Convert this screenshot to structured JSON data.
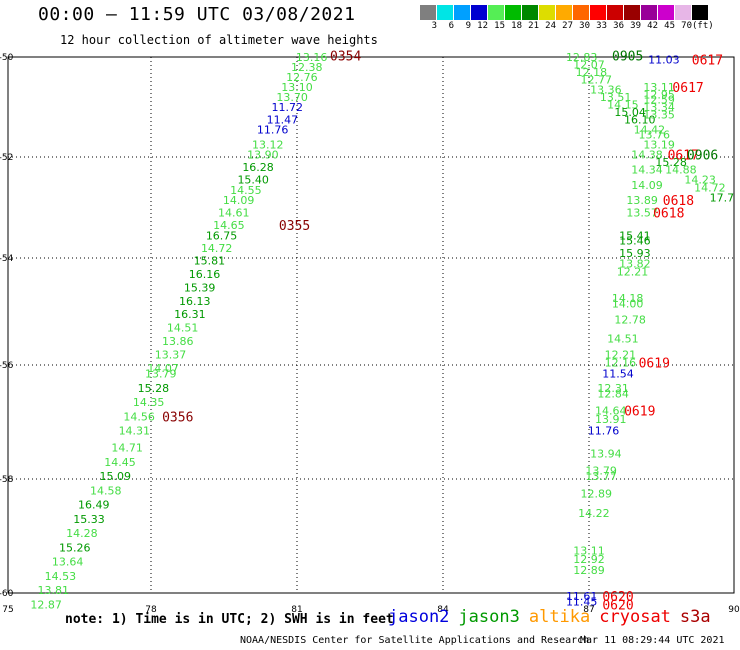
{
  "header": {
    "title": "00:00 – 11:59 UTC 03/08/2021",
    "subtitle": "12 hour collection of altimeter wave heights"
  },
  "colorbar": {
    "colors": [
      "#7f7f7f",
      "#00e5e5",
      "#00a0ff",
      "#0000d0",
      "#55ee55",
      "#00bb00",
      "#008800",
      "#dddd00",
      "#ffaa00",
      "#ff6600",
      "#ff0000",
      "#cc0000",
      "#990000",
      "#990099",
      "#cc00cc",
      "#e7b6e7",
      "#000000"
    ],
    "labels": [
      "3",
      "6",
      "9",
      "12",
      "15",
      "18",
      "21",
      "24",
      "27",
      "30",
      "33",
      "36",
      "39",
      "42",
      "45",
      "70",
      "(ft)"
    ]
  },
  "map": {
    "x_ticks": [
      "75",
      "78",
      "81",
      "84",
      "87",
      "90"
    ],
    "y_ticks": [
      "-50",
      "-52",
      "-54",
      "-56",
      "-58",
      "-60"
    ]
  },
  "heights": [
    {
      "t": "13.16",
      "c": "#44dd44",
      "lon": 81.3,
      "lat": -50.0
    },
    {
      "t": "12.38",
      "c": "#44dd44",
      "lon": 81.2,
      "lat": -50.2
    },
    {
      "t": "12.76",
      "c": "#44dd44",
      "lon": 81.1,
      "lat": -50.4
    },
    {
      "t": "13.10",
      "c": "#44dd44",
      "lon": 81.0,
      "lat": -50.6
    },
    {
      "t": "13.70",
      "c": "#44dd44",
      "lon": 80.9,
      "lat": -50.8
    },
    {
      "t": "11.72",
      "c": "#0000cc",
      "lon": 80.8,
      "lat": -51.0
    },
    {
      "t": "11.47",
      "c": "#0000cc",
      "lon": 80.7,
      "lat": -51.25
    },
    {
      "t": "11.76",
      "c": "#0000cc",
      "lon": 80.5,
      "lat": -51.45
    },
    {
      "t": "13.12",
      "c": "#44dd44",
      "lon": 80.4,
      "lat": -51.75
    },
    {
      "t": "13.90",
      "c": "#44dd44",
      "lon": 80.3,
      "lat": -51.95
    },
    {
      "t": "16.28",
      "c": "#009900",
      "lon": 80.2,
      "lat": -52.2
    },
    {
      "t": "15.40",
      "c": "#009900",
      "lon": 80.1,
      "lat": -52.45
    },
    {
      "t": "14.55",
      "c": "#44dd44",
      "lon": 79.95,
      "lat": -52.65
    },
    {
      "t": "14.09",
      "c": "#44dd44",
      "lon": 79.8,
      "lat": -52.85
    },
    {
      "t": "14.61",
      "c": "#44dd44",
      "lon": 79.7,
      "lat": -53.1
    },
    {
      "t": "14.65",
      "c": "#44dd44",
      "lon": 79.6,
      "lat": -53.35
    },
    {
      "t": "16.75",
      "c": "#009900",
      "lon": 79.45,
      "lat": -53.55
    },
    {
      "t": "14.72",
      "c": "#44dd44",
      "lon": 79.35,
      "lat": -53.8
    },
    {
      "t": "15.81",
      "c": "#009900",
      "lon": 79.2,
      "lat": -54.05
    },
    {
      "t": "16.16",
      "c": "#009900",
      "lon": 79.1,
      "lat": -54.3
    },
    {
      "t": "15.39",
      "c": "#009900",
      "lon": 79.0,
      "lat": -54.55
    },
    {
      "t": "16.13",
      "c": "#009900",
      "lon": 78.9,
      "lat": -54.8
    },
    {
      "t": "16.31",
      "c": "#009900",
      "lon": 78.8,
      "lat": -55.05
    },
    {
      "t": "14.51",
      "c": "#44dd44",
      "lon": 78.65,
      "lat": -55.3
    },
    {
      "t": "13.86",
      "c": "#44dd44",
      "lon": 78.55,
      "lat": -55.55
    },
    {
      "t": "13.37",
      "c": "#44dd44",
      "lon": 78.4,
      "lat": -55.8
    },
    {
      "t": "14.07",
      "c": "#44dd44",
      "lon": 78.25,
      "lat": -56.05
    },
    {
      "t": "13.79",
      "c": "#44dd44",
      "lon": 78.2,
      "lat": -56.15
    },
    {
      "t": "15.28",
      "c": "#009900",
      "lon": 78.05,
      "lat": -56.4
    },
    {
      "t": "14.35",
      "c": "#44dd44",
      "lon": 77.95,
      "lat": -56.65
    },
    {
      "t": "14.56",
      "c": "#44dd44",
      "lon": 77.75,
      "lat": -56.9
    },
    {
      "t": "14.31",
      "c": "#44dd44",
      "lon": 77.65,
      "lat": -57.15
    },
    {
      "t": "14.71",
      "c": "#44dd44",
      "lon": 77.5,
      "lat": -57.45
    },
    {
      "t": "14.45",
      "c": "#44dd44",
      "lon": 77.35,
      "lat": -57.7
    },
    {
      "t": "15.09",
      "c": "#009900",
      "lon": 77.25,
      "lat": -57.95
    },
    {
      "t": "14.58",
      "c": "#44dd44",
      "lon": 77.05,
      "lat": -58.2
    },
    {
      "t": "16.49",
      "c": "#009900",
      "lon": 76.8,
      "lat": -58.45
    },
    {
      "t": "15.33",
      "c": "#009900",
      "lon": 76.7,
      "lat": -58.7
    },
    {
      "t": "14.28",
      "c": "#44dd44",
      "lon": 76.55,
      "lat": -58.95
    },
    {
      "t": "15.26",
      "c": "#009900",
      "lon": 76.4,
      "lat": -59.2
    },
    {
      "t": "13.64",
      "c": "#44dd44",
      "lon": 76.25,
      "lat": -59.45
    },
    {
      "t": "14.53",
      "c": "#44dd44",
      "lon": 76.1,
      "lat": -59.7
    },
    {
      "t": "13.81",
      "c": "#44dd44",
      "lon": 75.95,
      "lat": -59.95
    },
    {
      "t": "12.87",
      "c": "#44dd44",
      "lon": 75.8,
      "lat": -60.2
    },
    {
      "t": "12.83",
      "c": "#44dd44",
      "lon": 86.85,
      "lat": -50.0
    },
    {
      "t": "12.07",
      "c": "#44dd44",
      "lon": 87.0,
      "lat": -50.15
    },
    {
      "t": "12.18",
      "c": "#44dd44",
      "lon": 87.05,
      "lat": -50.3
    },
    {
      "t": "12.77",
      "c": "#44dd44",
      "lon": 87.15,
      "lat": -50.45
    },
    {
      "t": "13.36",
      "c": "#44dd44",
      "lon": 87.35,
      "lat": -50.65
    },
    {
      "t": "13.51",
      "c": "#44dd44",
      "lon": 87.55,
      "lat": -50.8
    },
    {
      "t": "14.15",
      "c": "#44dd44",
      "lon": 87.7,
      "lat": -50.95
    },
    {
      "t": "15.04",
      "c": "#009900",
      "lon": 87.85,
      "lat": -51.1
    },
    {
      "t": "16.10",
      "c": "#009900",
      "lon": 88.05,
      "lat": -51.25
    },
    {
      "t": "13.11",
      "c": "#44dd44",
      "lon": 88.45,
      "lat": -50.6
    },
    {
      "t": "12.95",
      "c": "#44dd44",
      "lon": 88.45,
      "lat": -50.75
    },
    {
      "t": "12.59",
      "c": "#44dd44",
      "lon": 88.45,
      "lat": -50.85
    },
    {
      "t": "13.34",
      "c": "#44dd44",
      "lon": 88.45,
      "lat": -51.0
    },
    {
      "t": "13.35",
      "c": "#44dd44",
      "lon": 88.45,
      "lat": -51.15
    },
    {
      "t": "14.42",
      "c": "#44dd44",
      "lon": 88.25,
      "lat": -51.45
    },
    {
      "t": "13.76",
      "c": "#44dd44",
      "lon": 88.35,
      "lat": -51.55
    },
    {
      "t": "13.19",
      "c": "#44dd44",
      "lon": 88.45,
      "lat": -51.75
    },
    {
      "t": "14.38",
      "c": "#44dd44",
      "lon": 88.2,
      "lat": -51.95
    },
    {
      "t": "15.28",
      "c": "#009900",
      "lon": 88.7,
      "lat": -52.1
    },
    {
      "t": "14.34",
      "c": "#44dd44",
      "lon": 88.2,
      "lat": -52.25
    },
    {
      "t": "14.88",
      "c": "#44dd44",
      "lon": 88.9,
      "lat": -52.25
    },
    {
      "t": "14.23",
      "c": "#44dd44",
      "lon": 89.3,
      "lat": -52.45
    },
    {
      "t": "14.09",
      "c": "#44dd44",
      "lon": 88.2,
      "lat": -52.55
    },
    {
      "t": "14.72",
      "c": "#44dd44",
      "lon": 89.5,
      "lat": -52.6
    },
    {
      "t": "17.7",
      "c": "#009900",
      "lon": 89.75,
      "lat": -52.8
    },
    {
      "t": "13.89",
      "c": "#44dd44",
      "lon": 88.1,
      "lat": -52.85
    },
    {
      "t": "13.57",
      "c": "#44dd44",
      "lon": 88.1,
      "lat": -53.1
    },
    {
      "t": "15.41",
      "c": "#009900",
      "lon": 87.95,
      "lat": -53.55
    },
    {
      "t": "15.46",
      "c": "#009900",
      "lon": 87.95,
      "lat": -53.65
    },
    {
      "t": "15.93",
      "c": "#009900",
      "lon": 87.95,
      "lat": -53.9
    },
    {
      "t": "13.82",
      "c": "#44dd44",
      "lon": 87.95,
      "lat": -54.1
    },
    {
      "t": "12.21",
      "c": "#44dd44",
      "lon": 87.9,
      "lat": -54.25
    },
    {
      "t": "14.18",
      "c": "#44dd44",
      "lon": 87.8,
      "lat": -54.75
    },
    {
      "t": "14.00",
      "c": "#44dd44",
      "lon": 87.8,
      "lat": -54.85
    },
    {
      "t": "12.78",
      "c": "#44dd44",
      "lon": 87.85,
      "lat": -55.15
    },
    {
      "t": "14.51",
      "c": "#44dd44",
      "lon": 87.7,
      "lat": -55.5
    },
    {
      "t": "12.21",
      "c": "#44dd44",
      "lon": 87.65,
      "lat": -55.8
    },
    {
      "t": "12.16",
      "c": "#44dd44",
      "lon": 87.65,
      "lat": -55.95
    },
    {
      "t": "11.54",
      "c": "#0000cc",
      "lon": 87.6,
      "lat": -56.15
    },
    {
      "t": "12.31",
      "c": "#44dd44",
      "lon": 87.5,
      "lat": -56.4
    },
    {
      "t": "12.84",
      "c": "#44dd44",
      "lon": 87.5,
      "lat": -56.5
    },
    {
      "t": "14.64",
      "c": "#44dd44",
      "lon": 87.45,
      "lat": -56.8
    },
    {
      "t": "13.91",
      "c": "#44dd44",
      "lon": 87.45,
      "lat": -56.95
    },
    {
      "t": "11.76",
      "c": "#0000cc",
      "lon": 87.3,
      "lat": -57.15
    },
    {
      "t": "13.94",
      "c": "#44dd44",
      "lon": 87.35,
      "lat": -57.55
    },
    {
      "t": "13.79",
      "c": "#44dd44",
      "lon": 87.25,
      "lat": -57.85
    },
    {
      "t": "13.77",
      "c": "#44dd44",
      "lon": 87.25,
      "lat": -57.95
    },
    {
      "t": "12.89",
      "c": "#44dd44",
      "lon": 87.15,
      "lat": -58.25
    },
    {
      "t": "14.22",
      "c": "#44dd44",
      "lon": 87.1,
      "lat": -58.6
    },
    {
      "t": "13.11",
      "c": "#44dd44",
      "lon": 87.0,
      "lat": -59.25
    },
    {
      "t": "12.92",
      "c": "#44dd44",
      "lon": 87.0,
      "lat": -59.4
    },
    {
      "t": "12.89",
      "c": "#44dd44",
      "lon": 87.0,
      "lat": -59.6
    },
    {
      "t": "11.61",
      "c": "#0000cc",
      "lon": 86.85,
      "lat": -60.05
    },
    {
      "t": "11.45",
      "c": "#0000cc",
      "lon": 86.85,
      "lat": -60.15
    },
    {
      "t": "11.03",
      "c": "#0000cc",
      "lon": 88.55,
      "lat": -50.05
    }
  ],
  "passes": [
    {
      "t": "0354",
      "c": "#880000",
      "lon": 82.0,
      "lat": -49.97,
      "size": 13
    },
    {
      "t": "0355",
      "c": "#880000",
      "lon": 80.95,
      "lat": -53.35,
      "size": 13
    },
    {
      "t": "0356",
      "c": "#880000",
      "lon": 78.55,
      "lat": -56.9,
      "size": 13
    },
    {
      "t": "0905",
      "c": "#007700",
      "lon": 87.8,
      "lat": -49.97,
      "size": 13
    },
    {
      "t": "0617",
      "c": "#ee0000",
      "lon": 89.45,
      "lat": -50.05,
      "size": 13
    },
    {
      "t": "0617",
      "c": "#ee0000",
      "lon": 89.05,
      "lat": -50.6,
      "size": 13
    },
    {
      "t": "0617",
      "c": "#ee0000",
      "lon": 88.95,
      "lat": -51.95,
      "size": 13
    },
    {
      "t": "0906",
      "c": "#007700",
      "lon": 89.35,
      "lat": -51.95,
      "size": 13
    },
    {
      "t": "0618",
      "c": "#ee0000",
      "lon": 88.85,
      "lat": -52.85,
      "size": 13
    },
    {
      "t": "0618",
      "c": "#ee0000",
      "lon": 88.65,
      "lat": -53.1,
      "size": 13
    },
    {
      "t": "0619",
      "c": "#ee0000",
      "lon": 88.35,
      "lat": -55.95,
      "size": 13
    },
    {
      "t": "0619",
      "c": "#ee0000",
      "lon": 88.05,
      "lat": -56.8,
      "size": 13
    },
    {
      "t": "0620",
      "c": "#ee0000",
      "lon": 87.6,
      "lat": -60.05,
      "size": 13
    },
    {
      "t": "0620",
      "c": "#ee0000",
      "lon": 87.6,
      "lat": -60.2,
      "size": 13
    }
  ],
  "footer": {
    "note": "note: 1) Time is in UTC; 2) SWH is in feet",
    "credit": "NOAA/NESDIS Center for Satellite Applications and Research",
    "timestamp": "Mar 11 08:29:44 UTC 2021",
    "legend": [
      {
        "label": "jason2",
        "color": "#0000dd"
      },
      {
        "label": "jason3",
        "color": "#009900"
      },
      {
        "label": "altika",
        "color": "#ff9900"
      },
      {
        "label": "cryosat",
        "color": "#ee0000"
      },
      {
        "label": "s3a",
        "color": "#aa0000"
      }
    ]
  }
}
